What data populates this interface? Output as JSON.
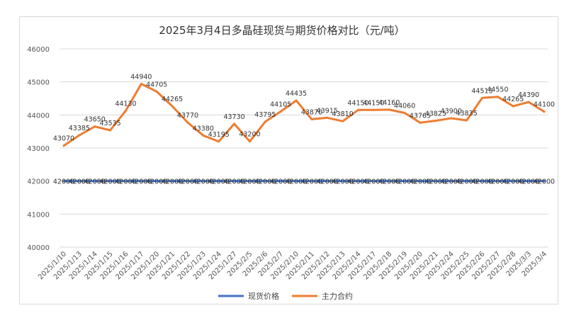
{
  "chart_data": {
    "type": "line",
    "title": "2025年3月4日多晶硅现货与期货价格对比（元/吨）",
    "categories": [
      "2025/1/10",
      "2025/1/13",
      "2025/1/14",
      "2025/1/15",
      "2025/1/16",
      "2025/1/17",
      "2025/1/20",
      "2025/1/21",
      "2025/1/22",
      "2025/1/23",
      "2025/1/24",
      "2025/1/27",
      "2025/2/5",
      "2025/2/6",
      "2025/2/7",
      "2025/2/10",
      "2025/2/11",
      "2025/2/12",
      "2025/2/13",
      "2025/2/14",
      "2025/2/17",
      "2025/2/18",
      "2025/2/19",
      "2025/2/20",
      "2025/2/21",
      "2025/2/24",
      "2025/2/25",
      "2025/2/26",
      "2025/2/27",
      "2025/2/28",
      "2025/3/3",
      "2025/3/4"
    ],
    "series": [
      {
        "name": "现货价格",
        "color": "#4472c4",
        "values": [
          42000,
          42000,
          42000,
          42000,
          42000,
          42000,
          42000,
          42000,
          42000,
          42000,
          42000,
          42000,
          42000,
          42000,
          42000,
          42000,
          42000,
          42000,
          42000,
          42000,
          42000,
          42000,
          42000,
          42000,
          42000,
          42000,
          42000,
          42000,
          42000,
          42000,
          42000,
          42000
        ],
        "labels": [
          "42000",
          "42000",
          "42000",
          "42000",
          "42000",
          "42000",
          "42000",
          "42000",
          "42000",
          "42000",
          "42000",
          "42000",
          "42000",
          "42000",
          "42000",
          "42000",
          "42000",
          "42000",
          "42000",
          "42000",
          "42000",
          "42000",
          "42000",
          "42000",
          "42000",
          "42000",
          "42000",
          "42000",
          "42000",
          "42000",
          "42000",
          "42000"
        ]
      },
      {
        "name": "主力合约",
        "color": "#ed7d31",
        "values": [
          43070,
          43385,
          43650,
          43535,
          44130,
          44940,
          44705,
          44265,
          43770,
          43380,
          43195,
          43730,
          43200,
          43795,
          44105,
          44435,
          43870,
          43915,
          43810,
          44150,
          44150,
          44160,
          44060,
          43765,
          43825,
          43900,
          43835,
          44515,
          44550,
          44265,
          44390,
          44100
        ],
        "labels": [
          "43070",
          "43385",
          "43650",
          "43535",
          "44130",
          "44940",
          "44705",
          "44265",
          "43770",
          "43380",
          "43195",
          "43730",
          "43200",
          "43795",
          "44105",
          "44435",
          "43870",
          "43915",
          "43810",
          "44150",
          "44150",
          "44160",
          "44060",
          "43765",
          "43825",
          "43900",
          "43835",
          "44515",
          "44550",
          "44265",
          "44390",
          "44100"
        ]
      }
    ],
    "yticks": [
      "40000",
      "41000",
      "42000",
      "43000",
      "44000",
      "45000",
      "46000"
    ],
    "ylim": [
      40000,
      46000
    ],
    "grid": true,
    "legend": "bottom"
  }
}
